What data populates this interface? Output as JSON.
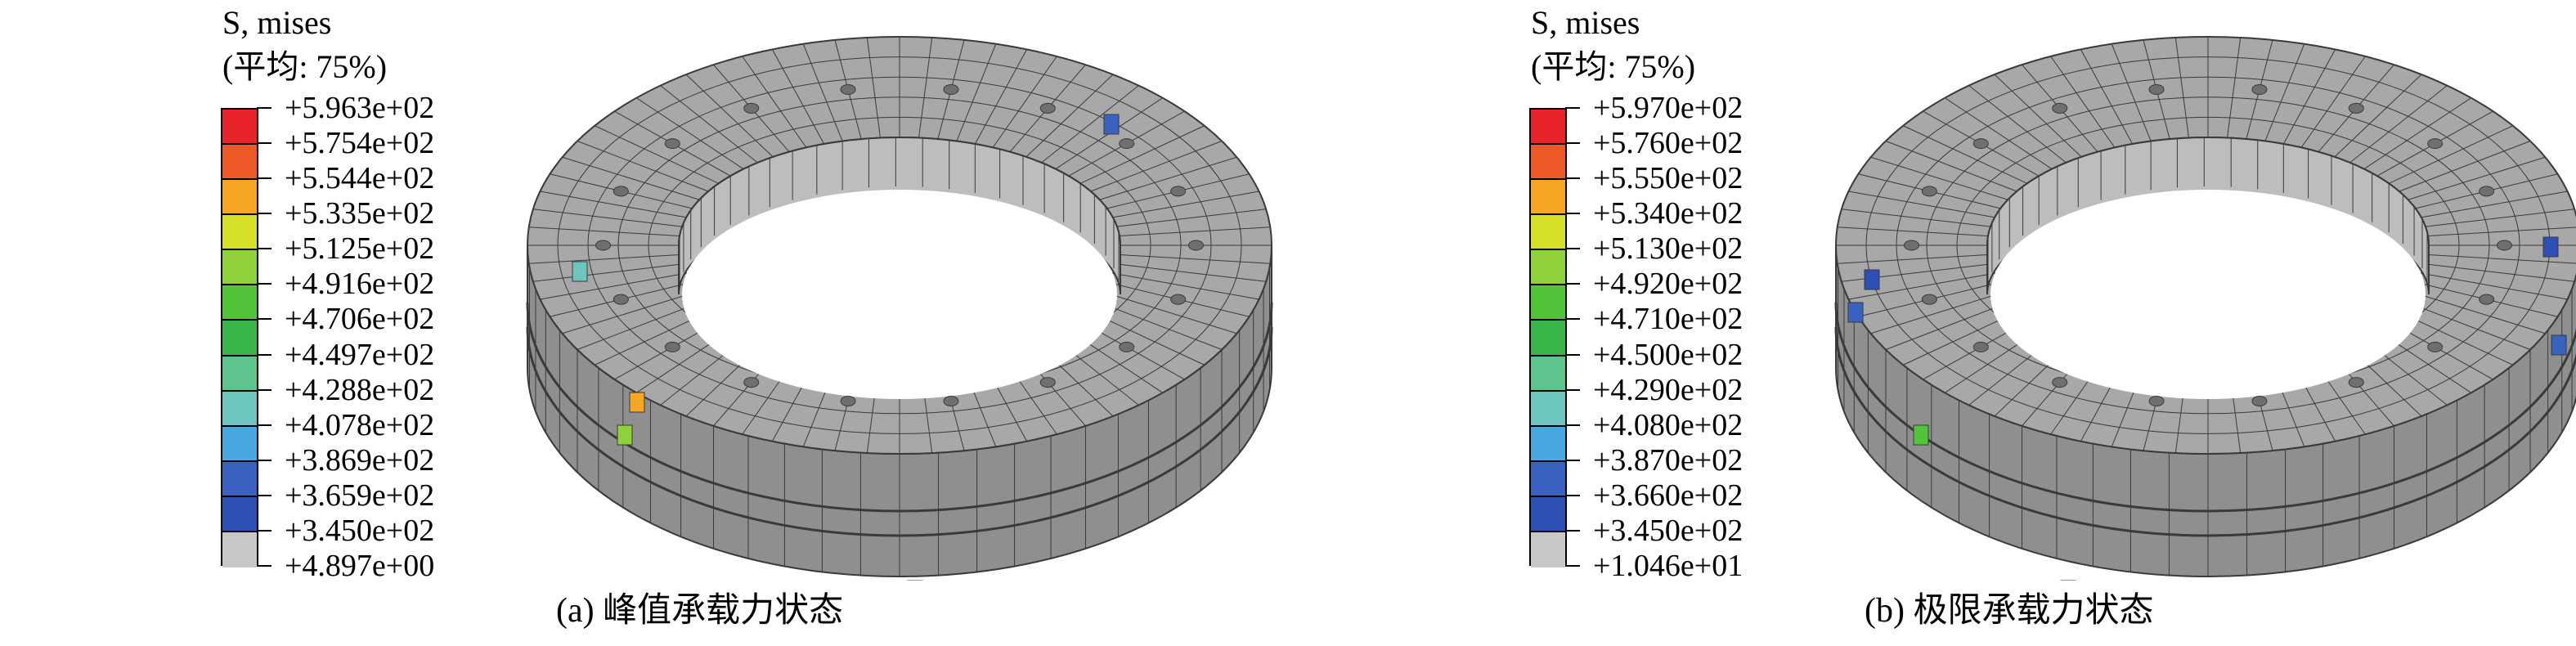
{
  "panels": [
    {
      "legend_title_line1": "S, mises",
      "legend_title_line2": "(平均: 75%)",
      "legend_values": [
        "+5.963e+02",
        "+5.754e+02",
        "+5.544e+02",
        "+5.335e+02",
        "+5.125e+02",
        "+4.916e+02",
        "+4.706e+02",
        "+4.497e+02",
        "+4.288e+02",
        "+4.078e+02",
        "+3.869e+02",
        "+3.659e+02",
        "+3.450e+02",
        "+4.897e+00"
      ],
      "caption": "(a) 峰值承载力状态"
    },
    {
      "legend_title_line1": "S, mises",
      "legend_title_line2": "(平均: 75%)",
      "legend_values": [
        "+5.970e+02",
        "+5.760e+02",
        "+5.550e+02",
        "+5.340e+02",
        "+5.130e+02",
        "+4.920e+02",
        "+4.710e+02",
        "+4.500e+02",
        "+4.290e+02",
        "+4.080e+02",
        "+3.870e+02",
        "+3.660e+02",
        "+3.450e+02",
        "+1.046e+01"
      ],
      "caption": "(b) 极限承载力状态"
    }
  ],
  "legend_colors": [
    "#e8232a",
    "#ee5a27",
    "#f5a623",
    "#d6e22a",
    "#8fd13a",
    "#52c43a",
    "#3ab54a",
    "#5ec48e",
    "#6cc6bf",
    "#4aa8e0",
    "#3a62c0",
    "#2e4fb4",
    "#c8c8c8"
  ],
  "mesh_colors": {
    "fill": "#a8a8a8",
    "fill_dark": "#8f8f8f",
    "fill_light": "#bdbdbd",
    "line": "#3a3a3a"
  }
}
